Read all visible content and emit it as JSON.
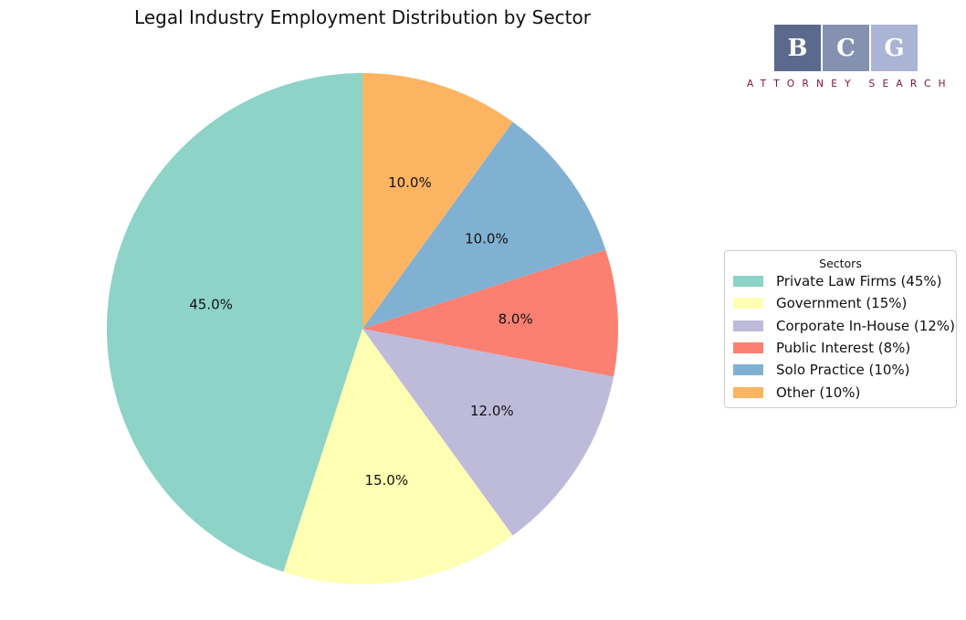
{
  "chart_data": {
    "type": "pie",
    "title": "Legal Industry Employment Distribution by Sector",
    "categories": [
      "Private Law Firms",
      "Government",
      "Corporate In-House",
      "Public Interest",
      "Solo Practice",
      "Other"
    ],
    "values": [
      45,
      15,
      12,
      8,
      10,
      10
    ],
    "value_labels": [
      "45.0%",
      "15.0%",
      "12.0%",
      "8.0%",
      "10.0%",
      "10.0%"
    ],
    "colors": [
      "#8dd3c7",
      "#ffffb3",
      "#bebada",
      "#fb8072",
      "#80b1d3",
      "#fdb462"
    ],
    "start_angle": 90,
    "direction": "counterclockwise",
    "legend": {
      "title": "Sectors",
      "placement": "right",
      "entries": [
        "Private Law Firms (45%)",
        "Government (15%)",
        "Corporate In-House (12%)",
        "Public Interest (8%)",
        "Solo Practice (10%)",
        "Other (10%)"
      ]
    }
  },
  "logo": {
    "letters": [
      "B",
      "C",
      "G"
    ],
    "tagline": "ATTORNEY SEARCH",
    "colors": [
      "#5b6a8c",
      "#8591b0",
      "#aab4d4"
    ]
  }
}
